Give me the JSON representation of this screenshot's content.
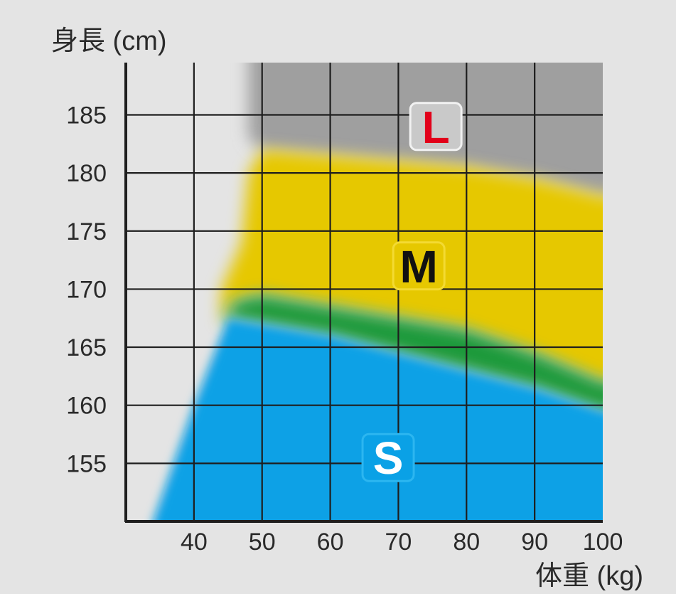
{
  "colors": {
    "background": "#e4e4e4",
    "grid": "#1e1e1e",
    "size_S": "#0aa1e6",
    "size_M": "#e6c800",
    "size_L": "#9f9f9f",
    "overlap_SM": "#1f9a3b",
    "label_L_text": "#e2001a",
    "label_M_text": "#111111",
    "label_S_text": "#ffffff"
  },
  "chart_data": {
    "type": "area",
    "xlabel": "体重 (kg)",
    "ylabel": "身長 (cm)",
    "xlim": [
      30,
      100
    ],
    "ylim": [
      150,
      189.5
    ],
    "x_ticks": [
      40,
      50,
      60,
      70,
      80,
      90,
      100
    ],
    "y_ticks": [
      155,
      160,
      165,
      170,
      175,
      180,
      185
    ],
    "x_tick_labels": [
      "40",
      "50",
      "60",
      "70",
      "80",
      "90",
      "100"
    ],
    "y_tick_labels": [
      "155",
      "160",
      "165",
      "170",
      "175",
      "180",
      "185"
    ],
    "grid": true,
    "regions": [
      {
        "name": "L",
        "color": "#9f9f9f",
        "lower_boundary": {
          "x": [
            48,
            50,
            60,
            70,
            80,
            90,
            100
          ],
          "y": [
            183,
            182,
            181.5,
            181,
            180.5,
            179.5,
            178
          ]
        },
        "upper_boundary": {
          "x": [
            48,
            100
          ],
          "y": [
            189.5,
            189.5
          ]
        }
      },
      {
        "name": "M",
        "color": "#e6c800",
        "lower_boundary": {
          "x": [
            44,
            46,
            50,
            60,
            70,
            80,
            90,
            100
          ],
          "y": [
            167,
            169,
            169.5,
            168.5,
            167.5,
            166.5,
            164.5,
            162
          ]
        },
        "upper_boundary": {
          "x": [
            44,
            47,
            48,
            50,
            60,
            70,
            80,
            90,
            100
          ],
          "y": [
            170,
            174,
            180,
            182,
            181.5,
            181,
            180.5,
            179.5,
            178
          ]
        }
      },
      {
        "name": "S",
        "color": "#0aa1e6",
        "left_boundary": {
          "x": [
            34,
            40,
            45
          ],
          "y": [
            150,
            160,
            167.5
          ]
        },
        "upper_boundary": {
          "x": [
            45,
            50,
            60,
            70,
            80,
            90,
            100
          ],
          "y": [
            167.5,
            167,
            166,
            164.5,
            163,
            161.5,
            159.5
          ]
        }
      }
    ],
    "labels": [
      {
        "text": "L",
        "x": 75.5,
        "y": 184
      },
      {
        "text": "M",
        "x": 73,
        "y": 172
      },
      {
        "text": "S",
        "x": 68.5,
        "y": 155.5
      }
    ]
  }
}
